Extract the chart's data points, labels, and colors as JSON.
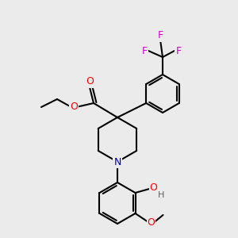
{
  "bg_color": "#ebebeb",
  "bond_color": "#000000",
  "atom_colors": {
    "O": "#ff0000",
    "N": "#0000cc",
    "F": "#cc00cc",
    "H": "#808080",
    "C": "#000000"
  },
  "line_width": 1.5,
  "dpi": 100
}
